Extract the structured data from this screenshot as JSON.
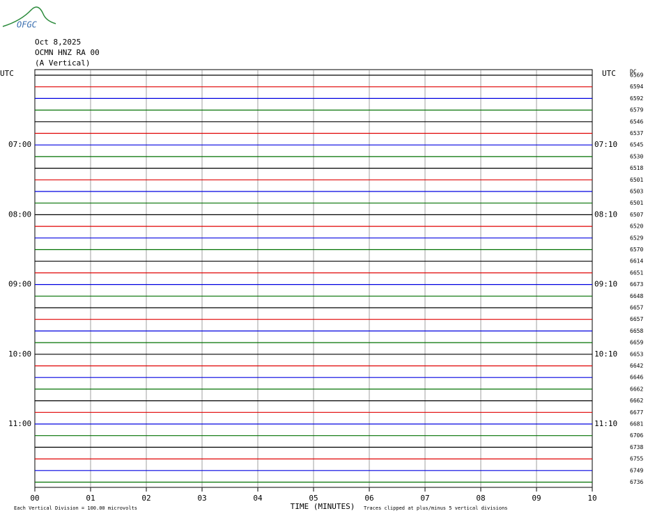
{
  "header": {
    "logo": "OFGC",
    "date": "Oct 8,2025",
    "station": "OCMN HNZ RA 00",
    "component": "(A Vertical)",
    "corner": "DC"
  },
  "left_axis_title": "UTC",
  "right_axis_title": "UTC",
  "trace_colors": [
    "#000000",
    "#e00000",
    "#0000e0",
    "#007000"
  ],
  "row_values": [
    6569,
    6594,
    6592,
    6579,
    6546,
    6537,
    6545,
    6530,
    6518,
    6501,
    6503,
    6501,
    6507,
    6520,
    6529,
    6570,
    6614,
    6651,
    6673,
    6648,
    6657,
    6657,
    6658,
    6659,
    6653,
    6642,
    6646,
    6662,
    6662,
    6677,
    6681,
    6706,
    6738,
    6755,
    6749,
    6736
  ],
  "hour_marks": [
    {
      "row": 6,
      "left": "07:00",
      "right": "07:10"
    },
    {
      "row": 12,
      "left": "08:00",
      "right": "08:10"
    },
    {
      "row": 18,
      "left": "09:00",
      "right": "09:10"
    },
    {
      "row": 24,
      "left": "10:00",
      "right": "10:10"
    },
    {
      "row": 30,
      "left": "11:00",
      "right": "11:10"
    }
  ],
  "x_axis": {
    "title": "TIME (MINUTES)",
    "ticks": [
      "00",
      "01",
      "02",
      "03",
      "04",
      "05",
      "06",
      "07",
      "08",
      "09",
      "10"
    ]
  },
  "footer": {
    "scale": "Each Vertical Division =  100.00 microvolts",
    "clip": "Traces clipped at plus/minus 5 vertical divisions"
  }
}
